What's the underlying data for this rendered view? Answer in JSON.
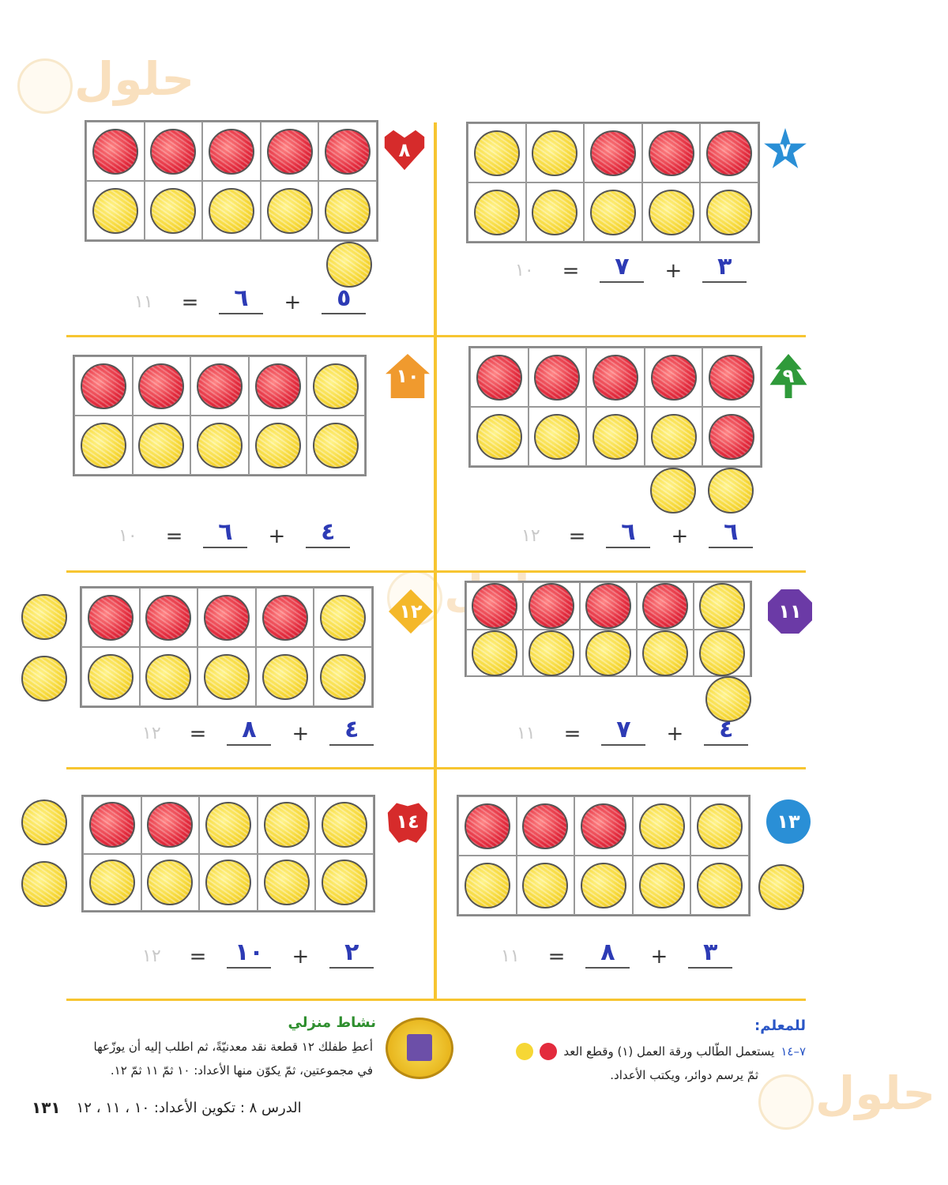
{
  "watermark": {
    "text": "حلول"
  },
  "panels": [
    {
      "id": "p7",
      "badge": "٧",
      "badge_shape": "star",
      "badge_color": "#2a8fd6",
      "answer_a": "٣",
      "answer_b": "٧",
      "sum": "١٠",
      "top": [
        "yellow",
        "yellow",
        "red",
        "red",
        "red"
      ],
      "bottom": [
        "yellow",
        "yellow",
        "yellow",
        "yellow",
        "yellow"
      ],
      "extra": []
    },
    {
      "id": "p8",
      "badge": "٨",
      "badge_shape": "heart",
      "badge_color": "#d62b2b",
      "answer_a": "٥",
      "answer_b": "٦",
      "sum": "١١",
      "top": [
        "red",
        "red",
        "red",
        "red",
        "red"
      ],
      "bottom": [
        "yellow",
        "yellow",
        "yellow",
        "yellow",
        "yellow"
      ],
      "extra": [
        "yellow"
      ]
    },
    {
      "id": "p9",
      "badge": "٩",
      "badge_shape": "tree",
      "badge_color": "#2f9a3a",
      "answer_a": "٦",
      "answer_b": "٦",
      "sum": "١٢",
      "top": [
        "red",
        "red",
        "red",
        "red",
        "red"
      ],
      "bottom": [
        "yellow",
        "yellow",
        "yellow",
        "yellow",
        "red"
      ],
      "extra": [
        "yellow",
        "yellow"
      ]
    },
    {
      "id": "p10",
      "badge": "١٠",
      "badge_shape": "house",
      "badge_color": "#f09a2e",
      "answer_a": "٤",
      "answer_b": "٦",
      "sum": "١٠",
      "top": [
        "red",
        "red",
        "red",
        "red",
        "yellow"
      ],
      "bottom": [
        "yellow",
        "yellow",
        "yellow",
        "yellow",
        "yellow"
      ],
      "extra": []
    },
    {
      "id": "p11",
      "badge": "١١",
      "badge_shape": "octagon",
      "badge_color": "#6b3aa6",
      "answer_a": "٤",
      "answer_b": "٧",
      "sum": "١١",
      "top": [
        "red",
        "red",
        "red",
        "red",
        "yellow"
      ],
      "bottom": [
        "yellow",
        "yellow",
        "yellow",
        "yellow",
        "yellow"
      ],
      "extra": [
        "yellow"
      ]
    },
    {
      "id": "p12",
      "badge": "١٢",
      "badge_shape": "diamond",
      "badge_color": "#f4b82a",
      "answer_a": "٤",
      "answer_b": "٨",
      "sum": "١٢",
      "top": [
        "red",
        "red",
        "red",
        "red",
        "yellow"
      ],
      "bottom": [
        "yellow",
        "yellow",
        "yellow",
        "yellow",
        "yellow"
      ],
      "extra": [
        "yellow",
        "yellow"
      ]
    },
    {
      "id": "p13",
      "badge": "١٣",
      "badge_shape": "circle",
      "badge_color": "#2a8fd6",
      "answer_a": "٣",
      "answer_b": "٨",
      "sum": "١١",
      "top": [
        "red",
        "red",
        "red",
        "yellow",
        "yellow"
      ],
      "bottom": [
        "yellow",
        "yellow",
        "yellow",
        "yellow",
        "yellow"
      ],
      "extra": [
        "yellow"
      ]
    },
    {
      "id": "p14",
      "badge": "١٤",
      "badge_shape": "apple",
      "badge_color": "#d62b2b",
      "answer_a": "٢",
      "answer_b": "١٠",
      "sum": "١٢",
      "top": [
        "red",
        "red",
        "yellow",
        "yellow",
        "yellow"
      ],
      "bottom": [
        "yellow",
        "yellow",
        "yellow",
        "yellow",
        "yellow"
      ],
      "extra": [
        "yellow",
        "yellow"
      ]
    }
  ],
  "home_activity": {
    "title": "نشاط منزلي",
    "line1": "أعطِ طفلك ١٢ قطعة نقد معدنيّةً، ثم اطلب إليه أن يوزّعها",
    "line2": "في مجموعتين، ثمّ يكوّن منها الأعداد: ١٠ ثمّ ١١ ثمّ ١٢."
  },
  "teacher_note": {
    "title": "للمعلم:",
    "ref": "٧–١٤",
    "line1": "يستعمل الطّالب ورقة العمل (١) وقطع العد",
    "line2": "ثمّ يرسم دوائر، ويكتب الأعداد."
  },
  "lesson_footer": {
    "text": "الدرس ٨ : تكوين الأعداد: ١٠ ، ١١ ، ١٢",
    "page_number": "١٣١"
  }
}
